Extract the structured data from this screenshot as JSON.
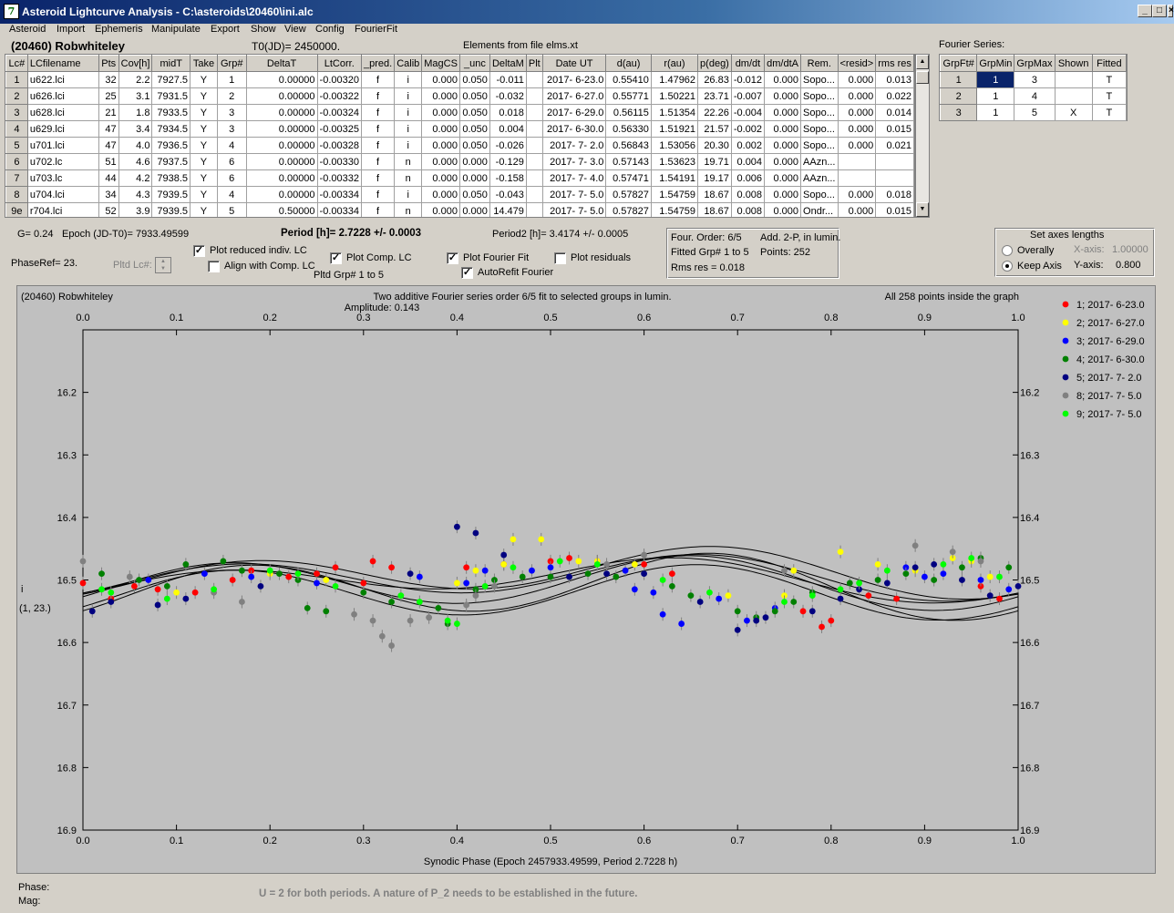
{
  "window": {
    "title": "Asteroid Lightcurve Analysis - C:\\asteroids\\20460\\ini.alc",
    "icon_glyph": "7"
  },
  "menu": [
    "Asteroid",
    "Import",
    "Ephemeris",
    "Manipulate",
    "Export",
    "Show",
    "View",
    "Config",
    "FourierFit"
  ],
  "header": {
    "asteroid": "(20460) Robwhiteley",
    "t0": "T0(JD)= 2450000.",
    "elements": "Elements from file elms.xt",
    "fourier_series_label": "Fourier Series:"
  },
  "lc_table": {
    "columns": [
      "Lc#",
      "LCfilename",
      "Pts",
      "Cov[h]",
      "midT",
      "Take",
      "Grp#",
      "DeltaT",
      "LtCorr.",
      "_pred.",
      "Calib",
      "MagCS",
      "_unc",
      "DeltaM",
      "Plt",
      "Date UT",
      "d(au)",
      "r(au)",
      "p(deg)",
      "dm/dt",
      "dm/dtA",
      "Rem.",
      "<resid>",
      "rms res"
    ],
    "rows": [
      [
        "1",
        "u622.lci",
        "32",
        "2.2",
        "7927.5",
        "Y",
        "1",
        "0.00000",
        "-0.00320",
        "f",
        "i",
        "0.000",
        "0.050",
        "-0.011",
        "",
        "2017- 6-23.0",
        "0.55410",
        "1.47962",
        "26.83",
        "-0.012",
        "0.000",
        "Sopo...",
        "0.000",
        "0.013"
      ],
      [
        "2",
        "u626.lci",
        "25",
        "3.1",
        "7931.5",
        "Y",
        "2",
        "0.00000",
        "-0.00322",
        "f",
        "i",
        "0.000",
        "0.050",
        "-0.032",
        "",
        "2017- 6-27.0",
        "0.55771",
        "1.50221",
        "23.71",
        "-0.007",
        "0.000",
        "Sopo...",
        "0.000",
        "0.022"
      ],
      [
        "3",
        "u628.lci",
        "21",
        "1.8",
        "7933.5",
        "Y",
        "3",
        "0.00000",
        "-0.00324",
        "f",
        "i",
        "0.000",
        "0.050",
        "0.018",
        "",
        "2017- 6-29.0",
        "0.56115",
        "1.51354",
        "22.26",
        "-0.004",
        "0.000",
        "Sopo...",
        "0.000",
        "0.014"
      ],
      [
        "4",
        "u629.lci",
        "47",
        "3.4",
        "7934.5",
        "Y",
        "3",
        "0.00000",
        "-0.00325",
        "f",
        "i",
        "0.000",
        "0.050",
        "0.004",
        "",
        "2017- 6-30.0",
        "0.56330",
        "1.51921",
        "21.57",
        "-0.002",
        "0.000",
        "Sopo...",
        "0.000",
        "0.015"
      ],
      [
        "5",
        "u701.lci",
        "47",
        "4.0",
        "7936.5",
        "Y",
        "4",
        "0.00000",
        "-0.00328",
        "f",
        "i",
        "0.000",
        "0.050",
        "-0.026",
        "",
        "2017- 7- 2.0",
        "0.56843",
        "1.53056",
        "20.30",
        "0.002",
        "0.000",
        "Sopo...",
        "0.000",
        "0.021"
      ],
      [
        "6",
        "u702.lc",
        "51",
        "4.6",
        "7937.5",
        "Y",
        "6",
        "0.00000",
        "-0.00330",
        "f",
        "n",
        "0.000",
        "0.000",
        "-0.129",
        "",
        "2017- 7- 3.0",
        "0.57143",
        "1.53623",
        "19.71",
        "0.004",
        "0.000",
        "AAzn...",
        "",
        ""
      ],
      [
        "7",
        "u703.lc",
        "44",
        "4.2",
        "7938.5",
        "Y",
        "6",
        "0.00000",
        "-0.00332",
        "f",
        "n",
        "0.000",
        "0.000",
        "-0.158",
        "",
        "2017- 7- 4.0",
        "0.57471",
        "1.54191",
        "19.17",
        "0.006",
        "0.000",
        "AAzn...",
        "",
        ""
      ],
      [
        "8",
        "u704.lci",
        "34",
        "4.3",
        "7939.5",
        "Y",
        "4",
        "0.00000",
        "-0.00334",
        "f",
        "i",
        "0.000",
        "0.050",
        "-0.043",
        "",
        "2017- 7- 5.0",
        "0.57827",
        "1.54759",
        "18.67",
        "0.008",
        "0.000",
        "Sopo...",
        "0.000",
        "0.018"
      ],
      [
        "9e",
        "r704.lci",
        "52",
        "3.9",
        "7939.5",
        "Y",
        "5",
        "0.50000",
        "-0.00334",
        "f",
        "n",
        "0.000",
        "0.000",
        "14.479",
        "",
        "2017- 7- 5.0",
        "0.57827",
        "1.54759",
        "18.67",
        "0.008",
        "0.000",
        "Ondr...",
        "0.000",
        "0.015"
      ]
    ]
  },
  "fourier_table": {
    "columns": [
      "GrpFt#",
      "GrpMin",
      "GrpMax",
      "Shown",
      "Fitted"
    ],
    "rows": [
      [
        "1",
        "1",
        "3",
        "",
        "T"
      ],
      [
        "2",
        "1",
        "4",
        "",
        "T"
      ],
      [
        "3",
        "1",
        "5",
        "X",
        "T"
      ]
    ]
  },
  "controls": {
    "g": "G= 0.24",
    "epoch": "Epoch (JD-T0)= 7933.49599",
    "period": "Period [h]= 2.7228 +/- 0.0003",
    "period2": "Period2 [h]= 3.4174 +/- 0.0005",
    "phase_ref": "PhaseRef= 23.",
    "pltd_lc": "Pltd Lc#:",
    "plot_reduced": "Plot reduced indiv. LC",
    "align_comp": "Align with Comp. LC",
    "plot_comp": "Plot Comp. LC",
    "pltd_grp": "Pltd Grp#  1   to   5",
    "plot_fourier": "Plot Fourier Fit",
    "autorefit": "AutoRefit Fourier",
    "plot_residuals": "Plot residuals",
    "four_order": "Four. Order:  6/5",
    "add_2p": "Add. 2-P, in lumin.",
    "fitted_grp": "Fitted Grp# 1 to 5",
    "points": "Points: 252",
    "rms_res": "Rms res     = 0.018",
    "set_axes": "Set axes lengths",
    "overally": "Overally",
    "keep_axis": "Keep Axis",
    "x_axis_label": "X-axis:",
    "x_axis_value": "1.00000",
    "y_axis_label": "Y-axis:",
    "y_axis_value": "0.800"
  },
  "chart_data": {
    "type": "scatter",
    "title": "Two additive Fourier series order 6/5 fit to selected groups in lumin.",
    "subtitle": "Amplitude: 0.143",
    "object_label": "(20460) Robwhiteley",
    "points_note": "All 258 points inside the graph",
    "xlabel": "Synodic Phase (Epoch 2457933.49599, Period 2.7228 h)",
    "ylabel": "i",
    "ylabel2": "(1, 23.)",
    "xlim": [
      0.0,
      1.0
    ],
    "ylim": [
      16.9,
      16.1
    ],
    "x_ticks": [
      "0.0",
      "0.1",
      "0.2",
      "0.3",
      "0.4",
      "0.5",
      "0.6",
      "0.7",
      "0.8",
      "0.9",
      "1.0"
    ],
    "y_ticks": [
      "16.2",
      "16.3",
      "16.4",
      "16.5",
      "16.6",
      "16.7",
      "16.8",
      "16.9"
    ],
    "legend_position": "right",
    "series": [
      {
        "name": "1; 2017- 6-23.0",
        "color": "#ff0000",
        "points": [
          [
            0.0,
            16.505
          ],
          [
            0.03,
            16.53
          ],
          [
            0.055,
            16.51
          ],
          [
            0.08,
            16.515
          ],
          [
            0.12,
            16.52
          ],
          [
            0.16,
            16.5
          ],
          [
            0.18,
            16.485
          ],
          [
            0.22,
            16.495
          ],
          [
            0.25,
            16.49
          ],
          [
            0.27,
            16.48
          ],
          [
            0.3,
            16.505
          ],
          [
            0.31,
            16.47
          ],
          [
            0.33,
            16.48
          ],
          [
            0.41,
            16.48
          ],
          [
            0.45,
            16.475
          ],
          [
            0.5,
            16.47
          ],
          [
            0.52,
            16.465
          ],
          [
            0.55,
            16.47
          ],
          [
            0.6,
            16.475
          ],
          [
            0.63,
            16.49
          ],
          [
            0.77,
            16.55
          ],
          [
            0.79,
            16.575
          ],
          [
            0.8,
            16.565
          ],
          [
            0.84,
            16.525
          ],
          [
            0.87,
            16.53
          ],
          [
            0.96,
            16.51
          ],
          [
            0.98,
            16.53
          ]
        ]
      },
      {
        "name": "2; 2017- 6-27.0",
        "color": "#ffff00",
        "points": [
          [
            0.1,
            16.52
          ],
          [
            0.2,
            16.49
          ],
          [
            0.26,
            16.5
          ],
          [
            0.4,
            16.505
          ],
          [
            0.42,
            16.485
          ],
          [
            0.45,
            16.475
          ],
          [
            0.46,
            16.435
          ],
          [
            0.49,
            16.435
          ],
          [
            0.53,
            16.47
          ],
          [
            0.55,
            16.47
          ],
          [
            0.59,
            16.475
          ],
          [
            0.69,
            16.525
          ],
          [
            0.75,
            16.525
          ],
          [
            0.76,
            16.485
          ],
          [
            0.81,
            16.455
          ],
          [
            0.85,
            16.475
          ],
          [
            0.89,
            16.485
          ],
          [
            0.93,
            16.465
          ],
          [
            0.95,
            16.47
          ],
          [
            0.97,
            16.495
          ]
        ]
      },
      {
        "name": "3; 2017- 6-29.0",
        "color": "#0000ff",
        "points": [
          [
            0.07,
            16.5
          ],
          [
            0.13,
            16.49
          ],
          [
            0.18,
            16.495
          ],
          [
            0.25,
            16.505
          ],
          [
            0.36,
            16.495
          ],
          [
            0.41,
            16.505
          ],
          [
            0.43,
            16.485
          ],
          [
            0.48,
            16.485
          ],
          [
            0.5,
            16.48
          ],
          [
            0.58,
            16.485
          ],
          [
            0.59,
            16.515
          ],
          [
            0.61,
            16.52
          ],
          [
            0.62,
            16.555
          ],
          [
            0.64,
            16.57
          ],
          [
            0.68,
            16.53
          ],
          [
            0.71,
            16.565
          ],
          [
            0.74,
            16.545
          ],
          [
            0.88,
            16.48
          ],
          [
            0.9,
            16.495
          ],
          [
            0.92,
            16.49
          ],
          [
            0.96,
            16.5
          ],
          [
            0.99,
            16.515
          ]
        ]
      },
      {
        "name": "4; 2017- 6-30.0",
        "color": "#008000",
        "points": [
          [
            0.02,
            16.49
          ],
          [
            0.06,
            16.5
          ],
          [
            0.09,
            16.51
          ],
          [
            0.11,
            16.475
          ],
          [
            0.15,
            16.47
          ],
          [
            0.17,
            16.485
          ],
          [
            0.21,
            16.49
          ],
          [
            0.23,
            16.5
          ],
          [
            0.24,
            16.545
          ],
          [
            0.26,
            16.55
          ],
          [
            0.3,
            16.52
          ],
          [
            0.33,
            16.535
          ],
          [
            0.38,
            16.545
          ],
          [
            0.39,
            16.57
          ],
          [
            0.42,
            16.515
          ],
          [
            0.44,
            16.5
          ],
          [
            0.47,
            16.495
          ],
          [
            0.5,
            16.495
          ],
          [
            0.54,
            16.49
          ],
          [
            0.57,
            16.495
          ],
          [
            0.63,
            16.51
          ],
          [
            0.65,
            16.525
          ],
          [
            0.7,
            16.55
          ],
          [
            0.72,
            16.56
          ],
          [
            0.74,
            16.55
          ],
          [
            0.76,
            16.535
          ],
          [
            0.78,
            16.52
          ],
          [
            0.82,
            16.505
          ],
          [
            0.85,
            16.5
          ],
          [
            0.88,
            16.49
          ],
          [
            0.91,
            16.5
          ],
          [
            0.94,
            16.48
          ],
          [
            0.96,
            16.465
          ],
          [
            0.99,
            16.48
          ]
        ]
      },
      {
        "name": "5; 2017- 7- 2.0",
        "color": "#000080",
        "points": [
          [
            0.01,
            16.55
          ],
          [
            0.03,
            16.535
          ],
          [
            0.08,
            16.54
          ],
          [
            0.11,
            16.53
          ],
          [
            0.19,
            16.51
          ],
          [
            0.35,
            16.49
          ],
          [
            0.4,
            16.415
          ],
          [
            0.42,
            16.425
          ],
          [
            0.45,
            16.46
          ],
          [
            0.52,
            16.495
          ],
          [
            0.56,
            16.49
          ],
          [
            0.6,
            16.49
          ],
          [
            0.66,
            16.535
          ],
          [
            0.7,
            16.58
          ],
          [
            0.72,
            16.565
          ],
          [
            0.73,
            16.56
          ],
          [
            0.78,
            16.55
          ],
          [
            0.81,
            16.53
          ],
          [
            0.83,
            16.515
          ],
          [
            0.86,
            16.505
          ],
          [
            0.89,
            16.48
          ],
          [
            0.91,
            16.475
          ],
          [
            0.94,
            16.5
          ],
          [
            0.97,
            16.525
          ],
          [
            1.0,
            16.51
          ]
        ]
      },
      {
        "name": "8; 2017- 7- 5.0",
        "color": "#808080",
        "points": [
          [
            0.0,
            16.47
          ],
          [
            0.05,
            16.495
          ],
          [
            0.14,
            16.52
          ],
          [
            0.17,
            16.535
          ],
          [
            0.29,
            16.555
          ],
          [
            0.31,
            16.565
          ],
          [
            0.32,
            16.59
          ],
          [
            0.33,
            16.605
          ],
          [
            0.35,
            16.565
          ],
          [
            0.37,
            16.56
          ],
          [
            0.41,
            16.54
          ],
          [
            0.42,
            16.525
          ],
          [
            0.44,
            16.51
          ],
          [
            0.56,
            16.475
          ],
          [
            0.6,
            16.46
          ],
          [
            0.75,
            16.485
          ],
          [
            0.89,
            16.445
          ],
          [
            0.93,
            16.455
          ],
          [
            0.96,
            16.47
          ]
        ]
      },
      {
        "name": "9; 2017- 7- 5.0",
        "color": "#00ff00",
        "points": [
          [
            0.02,
            16.515
          ],
          [
            0.03,
            16.52
          ],
          [
            0.09,
            16.53
          ],
          [
            0.14,
            16.515
          ],
          [
            0.2,
            16.485
          ],
          [
            0.23,
            16.49
          ],
          [
            0.27,
            16.51
          ],
          [
            0.34,
            16.525
          ],
          [
            0.36,
            16.535
          ],
          [
            0.39,
            16.565
          ],
          [
            0.4,
            16.57
          ],
          [
            0.43,
            16.51
          ],
          [
            0.46,
            16.48
          ],
          [
            0.51,
            16.47
          ],
          [
            0.55,
            16.475
          ],
          [
            0.62,
            16.5
          ],
          [
            0.67,
            16.52
          ],
          [
            0.75,
            16.535
          ],
          [
            0.78,
            16.525
          ],
          [
            0.81,
            16.515
          ],
          [
            0.83,
            16.505
          ],
          [
            0.86,
            16.485
          ],
          [
            0.92,
            16.475
          ],
          [
            0.95,
            16.465
          ],
          [
            0.98,
            16.495
          ]
        ]
      }
    ]
  },
  "status": {
    "phase": "Phase:",
    "mag": "Mag:",
    "note": "U = 2 for both periods.  A nature of P_2 needs to be established in the future."
  }
}
